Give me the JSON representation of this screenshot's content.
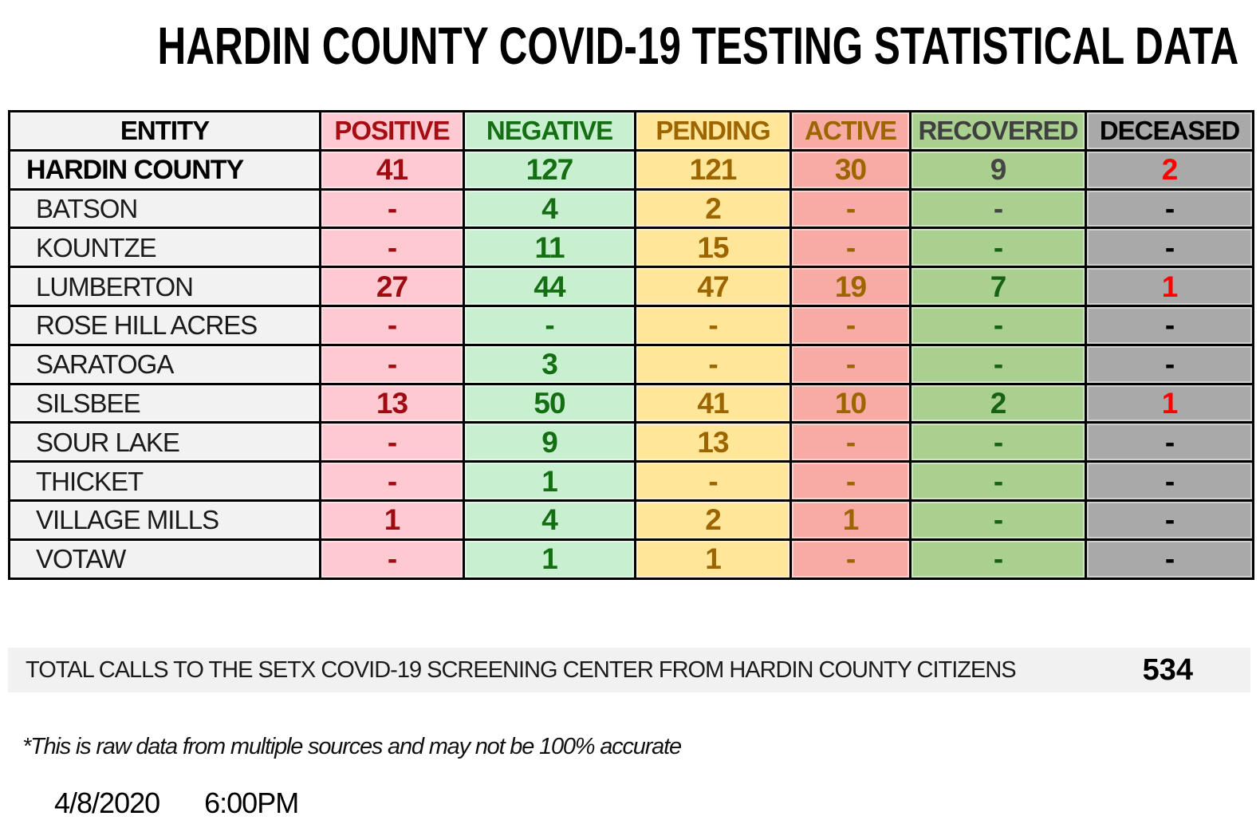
{
  "title": "HARDIN COUNTY COVID-19 TESTING STATISTICAL DATA",
  "table": {
    "columns": [
      {
        "key": "entity",
        "label": "ENTITY"
      },
      {
        "key": "positive",
        "label": "POSITIVE"
      },
      {
        "key": "negative",
        "label": "NEGATIVE"
      },
      {
        "key": "pending",
        "label": "PENDING"
      },
      {
        "key": "active",
        "label": "ACTIVE"
      },
      {
        "key": "recovered",
        "label": "RECOVERED"
      },
      {
        "key": "deceased",
        "label": "DECEASED"
      }
    ],
    "rows": [
      {
        "entity": "HARDIN COUNTY",
        "bold": true,
        "positive": "41",
        "negative": "127",
        "pending": "121",
        "active": "30",
        "recovered": "9",
        "recovered_gray": true,
        "deceased": "2",
        "deceased_red": true
      },
      {
        "entity": "BATSON",
        "positive": "-",
        "negative": "4",
        "pending": "2",
        "active": "-",
        "recovered": "-",
        "recovered_gray": true,
        "deceased": "-"
      },
      {
        "entity": "KOUNTZE",
        "positive": "-",
        "negative": "11",
        "pending": "15",
        "active": "-",
        "recovered": "-",
        "deceased": "-"
      },
      {
        "entity": "LUMBERTON",
        "positive": "27",
        "negative": "44",
        "pending": "47",
        "active": "19",
        "recovered": "7",
        "deceased": "1",
        "deceased_red": true
      },
      {
        "entity": "ROSE HILL ACRES",
        "positive": "-",
        "negative": "-",
        "pending": "-",
        "active": "-",
        "recovered": "-",
        "deceased": "-"
      },
      {
        "entity": "SARATOGA",
        "positive": "-",
        "negative": "3",
        "pending": "-",
        "active": "-",
        "recovered": "-",
        "deceased": "-"
      },
      {
        "entity": "SILSBEE",
        "positive": "13",
        "negative": "50",
        "pending": "41",
        "active": "10",
        "recovered": "2",
        "deceased": "1",
        "deceased_red": true
      },
      {
        "entity": "SOUR LAKE",
        "positive": "-",
        "negative": "9",
        "pending": "13",
        "active": "-",
        "recovered": "-",
        "deceased": "-"
      },
      {
        "entity": "THICKET",
        "positive": "-",
        "negative": "1",
        "pending": "-",
        "active": "-",
        "recovered": "-",
        "deceased": "-"
      },
      {
        "entity": "VILLAGE MILLS",
        "positive": "1",
        "negative": "4",
        "pending": "2",
        "active": "1",
        "recovered": "-",
        "deceased": "-"
      },
      {
        "entity": "VOTAW",
        "positive": "-",
        "negative": "1",
        "pending": "1",
        "active": "-",
        "recovered": "-",
        "deceased": "-"
      }
    ]
  },
  "summary": {
    "label": "TOTAL CALLS TO THE SETX COVID-19 SCREENING CENTER FROM HARDIN COUNTY CITIZENS",
    "value": "534"
  },
  "footnote": "*This is raw data from multiple sources and may not be 100% accurate",
  "footer": {
    "date": "4/8/2020",
    "time": "6:00PM"
  },
  "colors": {
    "positive_bg": "#FFC9D1",
    "positive_text": "#9E0B11",
    "negative_bg": "#C9EFD1",
    "negative_text": "#146E12",
    "pending_bg": "#FFE699",
    "pending_text": "#9C6500",
    "active_bg": "#F8ABA4",
    "active_text": "#9C6500",
    "recovered_bg": "#A9D08E",
    "recovered_text": "#176117",
    "recovered_alt_text": "#454545",
    "deceased_bg": "#A9A9A9",
    "deceased_text": "#000000",
    "deceased_alert_text": "#FF0000",
    "entity_bg": "#F2F2F2",
    "summary_bar_bg": "#F1F1F1",
    "border": "#000000"
  }
}
